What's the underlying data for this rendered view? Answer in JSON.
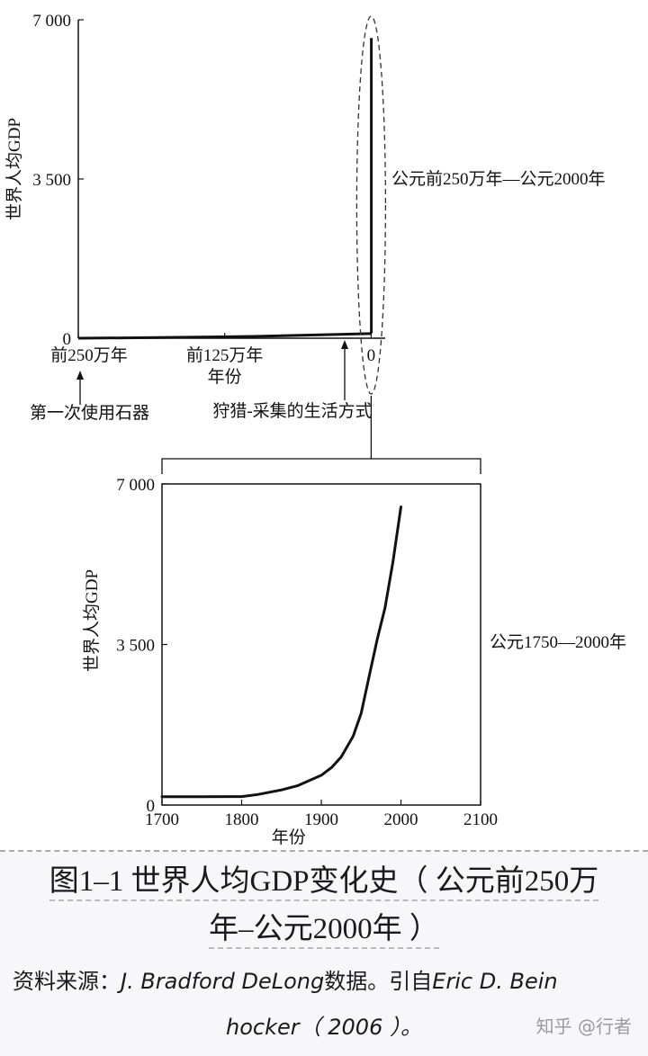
{
  "chart_data": [
    {
      "type": "line",
      "ylabel": "世界人均GDP",
      "xlabel": "年份",
      "y_ticks": [
        {
          "value": 0,
          "label": "0"
        },
        {
          "value": 3500,
          "label": "3 500"
        },
        {
          "value": 7000,
          "label": "7 000"
        }
      ],
      "ylim": [
        0,
        7000
      ],
      "x_ticks": [
        {
          "value": -2500000,
          "label": "前250万年"
        },
        {
          "value": -1250000,
          "label": "前125万年"
        },
        {
          "value": 0,
          "label": "0"
        }
      ],
      "xlim": [
        -2500000,
        120000
      ],
      "series": [
        {
          "x": [
            -2500000,
            -2000000,
            -1000000,
            -10000,
            1750,
            1800,
            1900,
            1950,
            2000
          ],
          "y": [
            0,
            10,
            40,
            100,
            130,
            130,
            160,
            280,
            6600
          ]
        }
      ],
      "annotations": {
        "range_label": "公元前250万年—公元2000年",
        "arrow_left": "第一次使用石器",
        "arrow_right": "狩猎-采集的生活方式"
      },
      "grid": false
    },
    {
      "type": "line",
      "ylabel": "世界人均GDP",
      "xlabel": "年份",
      "y_ticks": [
        {
          "value": 0,
          "label": "0"
        },
        {
          "value": 3500,
          "label": "3 500"
        },
        {
          "value": 7000,
          "label": "7 000"
        }
      ],
      "ylim": [
        0,
        7000
      ],
      "x_ticks": [
        {
          "value": 1700,
          "label": "1700"
        },
        {
          "value": 1800,
          "label": "1800"
        },
        {
          "value": 1900,
          "label": "1900"
        },
        {
          "value": 2000,
          "label": "2000"
        },
        {
          "value": 2100,
          "label": "2100"
        }
      ],
      "xlim": [
        1700,
        2100
      ],
      "series": [
        {
          "x": [
            1700,
            1750,
            1800,
            1820,
            1850,
            1870,
            1900,
            1913,
            1925,
            1940,
            1950,
            1960,
            1970,
            1980,
            1990,
            2000
          ],
          "y": [
            180,
            180,
            185,
            230,
            330,
            420,
            650,
            820,
            1050,
            1500,
            2000,
            2800,
            3600,
            4300,
            5300,
            6500
          ]
        }
      ],
      "annotations": {
        "range_label": "公元1750—2000年"
      },
      "grid": false
    }
  ],
  "caption": {
    "line1": "图1–1 世界人均GDP变化史（ 公元前250万",
    "line2": "年–公元2000年 ）"
  },
  "source": {
    "line1_prefix": "资料来源：",
    "line1_author": "J. Bradford DeLong",
    "line1_mid": "数据。引自",
    "line1_author2": "Eric D. Bein",
    "line2": "hocker（ 2006 ）。"
  },
  "watermark": "知乎 @行者"
}
